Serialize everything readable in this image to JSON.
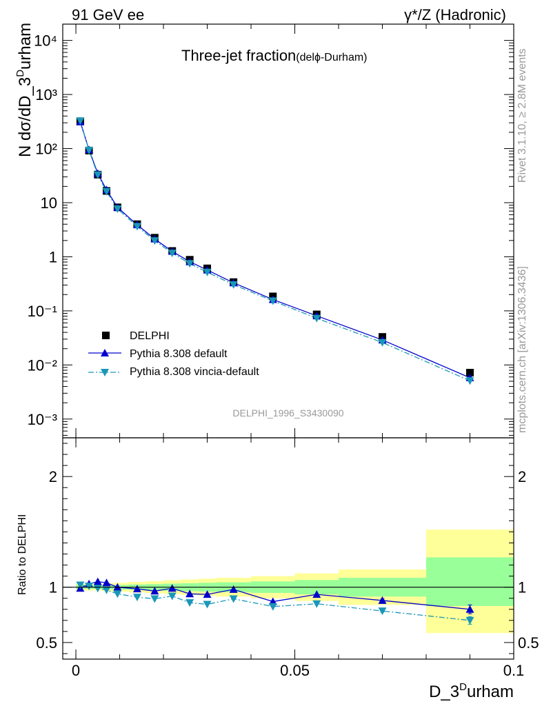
{
  "header": {
    "left": "91 GeV ee",
    "right": "γ*/Z (Hadronic)"
  },
  "title": {
    "main": "Three-jet fraction",
    "sub": "(delϕ-Durham)"
  },
  "watermark": "DELPHI_1996_S3430090",
  "side": {
    "top": "Rivet 3.1.10, ≥ 2.8M events",
    "bottom": "mcplots.cern.ch [arXiv:1306.3436]"
  },
  "colors": {
    "data": "#000000",
    "default": "#0000cc",
    "vincia": "#1a97b8",
    "yellow": "#ffff99",
    "green": "#99ff99"
  },
  "chart_data": [
    {
      "type": "scatter",
      "ylabel": "N dσ/dD_3^Durham",
      "yscale": "log",
      "xlim": [
        -0.003,
        0.1
      ],
      "ylim": [
        0.00045,
        20000
      ],
      "y_tick_labels": [
        "10⁻³",
        "10⁻²",
        "10⁻¹",
        "1",
        "10",
        "10²",
        "10³",
        "10⁴"
      ],
      "legend": {
        "position": "bottom-left",
        "entries": [
          "DELPHI",
          "Pythia 8.308 default",
          "Pythia 8.308 vincia-default"
        ]
      },
      "x": [
        0.001,
        0.003,
        0.005,
        0.007,
        0.0095,
        0.014,
        0.018,
        0.022,
        0.026,
        0.03,
        0.036,
        0.045,
        0.055,
        0.07,
        0.09
      ],
      "series": [
        {
          "name": "DELPHI",
          "values": [
            320,
            92,
            33,
            16.5,
            8.2,
            4.0,
            2.25,
            1.28,
            0.88,
            0.61,
            0.34,
            0.185,
            0.086,
            0.033,
            0.0072
          ]
        },
        {
          "name": "Pythia 8.308 default",
          "values": [
            312,
            95,
            34.7,
            17.3,
            8.2,
            3.9,
            2.13,
            1.26,
            0.81,
            0.57,
            0.33,
            0.162,
            0.081,
            0.029,
            0.0058
          ]
        },
        {
          "name": "Pythia 8.308 vincia-default",
          "values": [
            326,
            93,
            32.7,
            16.1,
            7.7,
            3.65,
            1.98,
            1.17,
            0.75,
            0.52,
            0.305,
            0.153,
            0.073,
            0.026,
            0.0051
          ]
        }
      ]
    },
    {
      "type": "line",
      "xlabel": "D_3^Durham",
      "ylabel": "Ratio to DELPHI",
      "xlim": [
        -0.003,
        0.1
      ],
      "ylim": [
        0.35,
        2.35
      ],
      "x_ticks": [
        0,
        0.05,
        0.1
      ],
      "x_tick_labels": [
        "0",
        "0.05",
        "0.1"
      ],
      "y_ticks": [
        0.5,
        1,
        2
      ],
      "y_tick_labels": [
        "0.5",
        "1",
        "2"
      ],
      "reference_line": 1,
      "x": [
        0.001,
        0.003,
        0.005,
        0.007,
        0.0095,
        0.014,
        0.018,
        0.022,
        0.026,
        0.03,
        0.036,
        0.045,
        0.055,
        0.07,
        0.09
      ],
      "series": [
        {
          "name": "Pythia 8.308 default",
          "values": [
            0.99,
            1.03,
            1.05,
            1.04,
            1.0,
            0.985,
            0.965,
            0.99,
            0.94,
            0.935,
            0.98,
            0.87,
            0.935,
            0.88,
            0.8
          ],
          "err": [
            0,
            0,
            0,
            0,
            0,
            0,
            0,
            0,
            0,
            0,
            0,
            0,
            0,
            0.015,
            0.04
          ]
        },
        {
          "name": "Pythia 8.308 vincia-default",
          "values": [
            1.02,
            1.01,
            0.99,
            0.975,
            0.94,
            0.91,
            0.895,
            0.92,
            0.86,
            0.845,
            0.895,
            0.825,
            0.85,
            0.785,
            0.7
          ],
          "err": [
            0,
            0,
            0,
            0,
            0,
            0,
            0,
            0,
            0,
            0,
            0,
            0,
            0,
            0.01,
            0.035
          ]
        }
      ],
      "bands": [
        {
          "x0": 0.0,
          "x1": 0.002,
          "green": [
            0.985,
            1.015
          ],
          "yellow": [
            0.97,
            1.03
          ]
        },
        {
          "x0": 0.002,
          "x1": 0.004,
          "green": [
            0.985,
            1.015
          ],
          "yellow": [
            0.97,
            1.03
          ]
        },
        {
          "x0": 0.004,
          "x1": 0.006,
          "green": [
            0.985,
            1.015
          ],
          "yellow": [
            0.97,
            1.03
          ]
        },
        {
          "x0": 0.006,
          "x1": 0.008,
          "green": [
            0.982,
            1.018
          ],
          "yellow": [
            0.965,
            1.035
          ]
        },
        {
          "x0": 0.008,
          "x1": 0.012,
          "green": [
            0.98,
            1.02
          ],
          "yellow": [
            0.96,
            1.04
          ]
        },
        {
          "x0": 0.012,
          "x1": 0.016,
          "green": [
            0.976,
            1.024
          ],
          "yellow": [
            0.952,
            1.048
          ]
        },
        {
          "x0": 0.016,
          "x1": 0.02,
          "green": [
            0.972,
            1.028
          ],
          "yellow": [
            0.945,
            1.055
          ]
        },
        {
          "x0": 0.02,
          "x1": 0.024,
          "green": [
            0.968,
            1.032
          ],
          "yellow": [
            0.937,
            1.063
          ]
        },
        {
          "x0": 0.024,
          "x1": 0.028,
          "green": [
            0.964,
            1.036
          ],
          "yellow": [
            0.93,
            1.07
          ]
        },
        {
          "x0": 0.028,
          "x1": 0.032,
          "green": [
            0.96,
            1.04
          ],
          "yellow": [
            0.923,
            1.077
          ]
        },
        {
          "x0": 0.032,
          "x1": 0.04,
          "green": [
            0.956,
            1.044
          ],
          "yellow": [
            0.915,
            1.085
          ]
        },
        {
          "x0": 0.04,
          "x1": 0.05,
          "green": [
            0.948,
            1.052
          ],
          "yellow": [
            0.9,
            1.1
          ]
        },
        {
          "x0": 0.05,
          "x1": 0.06,
          "green": [
            0.935,
            1.065
          ],
          "yellow": [
            0.875,
            1.125
          ]
        },
        {
          "x0": 0.06,
          "x1": 0.08,
          "green": [
            0.915,
            1.085
          ],
          "yellow": [
            0.84,
            1.16
          ]
        },
        {
          "x0": 0.08,
          "x1": 0.1,
          "green": [
            0.83,
            1.27
          ],
          "yellow": [
            0.585,
            1.52
          ]
        }
      ]
    }
  ]
}
